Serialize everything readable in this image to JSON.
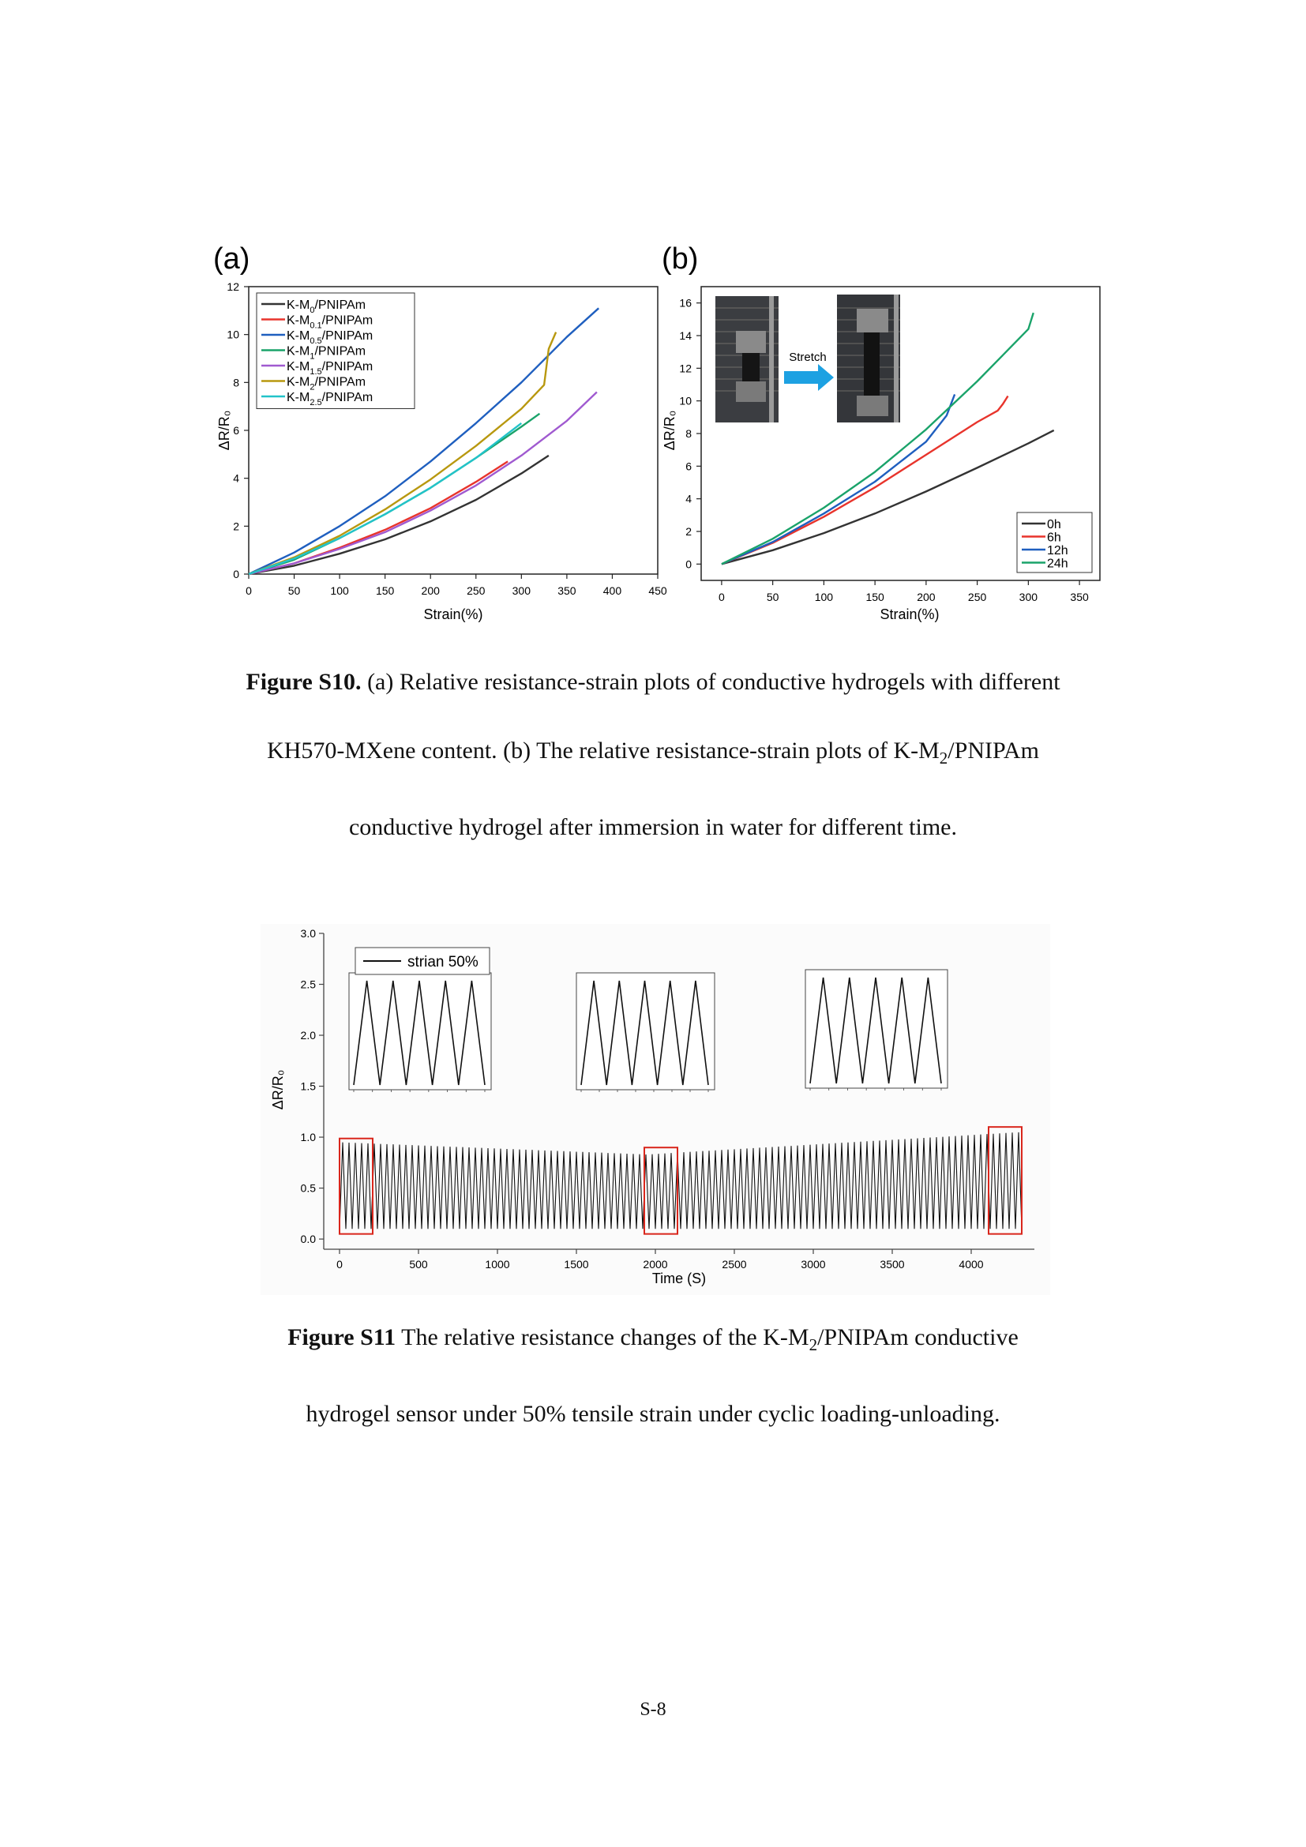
{
  "figure_s10": {
    "panel_a": {
      "label": "(a)",
      "chart_data": {
        "type": "line",
        "xlabel": "Strain(%)",
        "ylabel": "ΔR/R₀",
        "xlim": [
          0,
          450
        ],
        "ylim": [
          0,
          12
        ],
        "xticks": [
          "0",
          "50",
          "100",
          "150",
          "200",
          "250",
          "300",
          "350",
          "400",
          "450"
        ],
        "yticks": [
          "0",
          "2",
          "4",
          "6",
          "8",
          "10",
          "12"
        ],
        "legend": "top-left",
        "series": [
          {
            "name": "K-M0/PNIPAm",
            "label_main": "K-M",
            "label_sub": "0",
            "label_end": "/PNIPAm",
            "color": "#333333",
            "x": [
              0,
              50,
              100,
              150,
              200,
              250,
              300,
              330
            ],
            "y": [
              0,
              0.35,
              0.85,
              1.45,
              2.2,
              3.1,
              4.2,
              4.95
            ]
          },
          {
            "name": "K-M0.1/PNIPAm",
            "label_main": "K-M",
            "label_sub": "0.1",
            "label_end": "/PNIPAm",
            "color": "#e8342c",
            "x": [
              0,
              50,
              100,
              150,
              200,
              250,
              285
            ],
            "y": [
              0,
              0.45,
              1.1,
              1.85,
              2.75,
              3.85,
              4.7
            ]
          },
          {
            "name": "K-M0.5/PNIPAm",
            "label_main": "K-M",
            "label_sub": "0.5",
            "label_end": "/PNIPAm",
            "color": "#1f5fbf",
            "x": [
              0,
              50,
              100,
              150,
              200,
              250,
              300,
              350,
              385
            ],
            "y": [
              0,
              0.9,
              2.0,
              3.25,
              4.7,
              6.3,
              8.0,
              9.9,
              11.1
            ]
          },
          {
            "name": "K-M1/PNIPAm",
            "label_main": "K-M",
            "label_sub": "1",
            "label_end": "/PNIPAm",
            "color": "#1aa36a",
            "x": [
              0,
              50,
              100,
              150,
              200,
              250,
              300,
              320
            ],
            "y": [
              0,
              0.6,
              1.5,
              2.5,
              3.6,
              4.85,
              6.15,
              6.7
            ]
          },
          {
            "name": "K-M1.5/PNIPAm",
            "label_main": "K-M",
            "label_sub": "1.5",
            "label_end": "/PNIPAm",
            "color": "#a05ad0",
            "x": [
              0,
              50,
              100,
              150,
              200,
              250,
              300,
              350,
              383
            ],
            "y": [
              0,
              0.45,
              1.05,
              1.75,
              2.65,
              3.7,
              4.95,
              6.4,
              7.6
            ]
          },
          {
            "name": "K-M2/PNIPAm",
            "label_main": "K-M",
            "label_sub": "2",
            "label_end": "/PNIPAm",
            "color": "#b8980f",
            "x": [
              0,
              50,
              100,
              150,
              200,
              250,
              300,
              325,
              330,
              338
            ],
            "y": [
              0,
              0.7,
              1.6,
              2.7,
              3.95,
              5.35,
              6.9,
              7.9,
              9.4,
              10.1
            ]
          },
          {
            "name": "K-M2.5/PNIPAm",
            "label_main": "K-M",
            "label_sub": "2.5",
            "label_end": "/PNIPAm",
            "color": "#22c3c9",
            "x": [
              0,
              50,
              100,
              150,
              200,
              250,
              300
            ],
            "y": [
              0,
              0.65,
              1.5,
              2.5,
              3.6,
              4.85,
              6.3
            ]
          }
        ]
      }
    },
    "panel_b": {
      "label": "(b)",
      "inset_label": "Stretch",
      "chart_data": {
        "type": "line",
        "xlabel": "Strain(%)",
        "ylabel": "ΔR/R₀",
        "xlim": [
          -20,
          370
        ],
        "ylim": [
          -1,
          17
        ],
        "xticks": [
          "0",
          "50",
          "100",
          "150",
          "200",
          "250",
          "300",
          "350"
        ],
        "yticks": [
          "0",
          "2",
          "4",
          "6",
          "8",
          "10",
          "12",
          "14",
          "16"
        ],
        "legend": "bottom-right",
        "series": [
          {
            "name": "0h",
            "color": "#333333",
            "x": [
              0,
              50,
              100,
              150,
              200,
              250,
              300,
              325
            ],
            "y": [
              0,
              0.85,
              1.9,
              3.1,
              4.45,
              5.9,
              7.4,
              8.2
            ]
          },
          {
            "name": "6h",
            "color": "#e8342c",
            "x": [
              0,
              50,
              100,
              150,
              200,
              250,
              270,
              275,
              280
            ],
            "y": [
              0,
              1.3,
              2.9,
              4.7,
              6.7,
              8.7,
              9.4,
              9.8,
              10.3
            ]
          },
          {
            "name": "12h",
            "color": "#1f5fbf",
            "x": [
              0,
              50,
              100,
              150,
              200,
              220,
              228
            ],
            "y": [
              0,
              1.35,
              3.1,
              5.05,
              7.5,
              9.1,
              10.4
            ]
          },
          {
            "name": "24h",
            "color": "#1aa36a",
            "x": [
              0,
              50,
              100,
              150,
              200,
              250,
              300,
              305
            ],
            "y": [
              0,
              1.55,
              3.45,
              5.65,
              8.25,
              11.2,
              14.4,
              15.4
            ]
          }
        ]
      }
    },
    "caption": {
      "bold": "Figure S10.",
      "line1_rest": " (a)  Relative resistance-strain plots of conductive hydrogels with different",
      "line2_pre": "KH570-MXene content. (b) The relative resistance-strain plots of K-M",
      "line2_sub": "2",
      "line2_post": "/PNIPAm",
      "line3": "conductive hydrogel after immersion in water for different time."
    }
  },
  "figure_s11": {
    "chart_data": {
      "type": "line",
      "xlabel": "Time (S)",
      "ylabel": "ΔR/R₀",
      "xlim": [
        -100,
        4400
      ],
      "ylim": [
        -0.1,
        3.0
      ],
      "xticks": [
        "0",
        "500",
        "1000",
        "1500",
        "2000",
        "2500",
        "3000",
        "3500",
        "4000"
      ],
      "yticks": [
        "0.0",
        "0.5",
        "1.0",
        "1.5",
        "2.0",
        "2.5",
        "3.0"
      ],
      "legend": "top-left",
      "series": [
        {
          "name": "strian 50%",
          "color": "#111111",
          "period_s": 40,
          "min": 0.1,
          "peak_start": 0.95,
          "peak_middle": 0.83,
          "peak_end": 1.05,
          "t_end": 4320
        }
      ],
      "highlight_boxes_s": [
        [
          0,
          210
        ],
        [
          1930,
          2140
        ],
        [
          4110,
          4320
        ]
      ]
    }
  },
  "caption_s11": {
    "bold": "Figure S11",
    "line1_pre": " The relative resistance changes of the K-M",
    "line1_sub": "2",
    "line1_post": "/PNIPAm conductive",
    "line2": "hydrogel sensor under 50% tensile strain under cyclic loading-unloading."
  },
  "page_number": "S-8"
}
